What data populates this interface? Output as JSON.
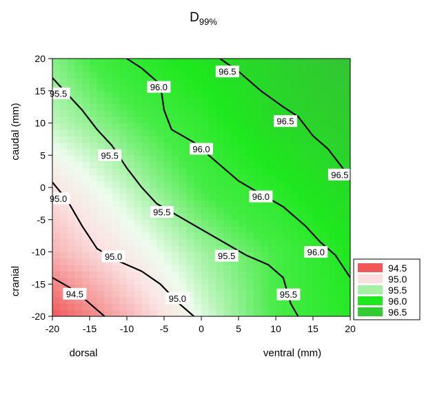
{
  "chart_data": {
    "type": "contour",
    "title_main": "D",
    "title_sub": "99%",
    "xlim": [
      -20,
      20
    ],
    "ylim": [
      -20,
      20
    ],
    "x_ticks": [
      -20,
      -15,
      -10,
      -5,
      0,
      5,
      10,
      15,
      20
    ],
    "y_ticks": [
      -20,
      -15,
      -10,
      -5,
      0,
      5,
      10,
      15,
      20
    ],
    "xlabel_left": "dorsal",
    "xlabel_right": "ventral (mm)",
    "ylabel_top": "caudal (mm)",
    "ylabel_bottom": "cranial",
    "grid": false,
    "legend_position": "right",
    "legend": [
      {
        "label": "94.5",
        "color": "#f25757"
      },
      {
        "label": "95.0",
        "color": "#fbdfdf"
      },
      {
        "label": "95.5",
        "color": "#a3f2a3"
      },
      {
        "label": "96.0",
        "color": "#1ee81e"
      },
      {
        "label": "96.5",
        "color": "#2fcd2f"
      }
    ],
    "grid_x": [
      -20,
      -10,
      0,
      10,
      20
    ],
    "grid_y": [
      -20,
      -10,
      0,
      10,
      20
    ],
    "z": [
      [
        94.3,
        94.9,
        95.5,
        96.0,
        96.3
      ],
      [
        94.9,
        95.3,
        95.7,
        96.0,
        96.4
      ],
      [
        95.2,
        95.6,
        96.0,
        96.3,
        96.7
      ],
      [
        95.6,
        95.9,
        96.2,
        96.7,
        97.0
      ],
      [
        95.8,
        96.2,
        96.5,
        96.9,
        97.2
      ]
    ],
    "contour_lines": [
      {
        "level": "94.5",
        "points": [
          [
            -20,
            -14
          ],
          [
            -17,
            -16
          ],
          [
            -15,
            -18
          ],
          [
            -13,
            -20
          ]
        ]
      },
      {
        "level": "95.0",
        "points": [
          [
            -20,
            0.8
          ],
          [
            -18,
            -2
          ],
          [
            -16,
            -6
          ],
          [
            -14,
            -9.5
          ],
          [
            -11,
            -11.5
          ],
          [
            -8,
            -13
          ],
          [
            -5.5,
            -15
          ],
          [
            -3,
            -18
          ],
          [
            -1,
            -20
          ]
        ]
      },
      {
        "level": "95.5",
        "points": [
          [
            -20,
            17
          ],
          [
            -18,
            14.5
          ],
          [
            -16,
            12
          ],
          [
            -14,
            9
          ],
          [
            -12,
            6.5
          ],
          [
            -10,
            3
          ],
          [
            -8,
            0
          ],
          [
            -6,
            -2.5
          ],
          [
            -3,
            -4.5
          ],
          [
            0,
            -6.5
          ],
          [
            3,
            -8.5
          ],
          [
            6,
            -10.5
          ],
          [
            9,
            -12
          ],
          [
            11,
            -14
          ],
          [
            12,
            -18
          ],
          [
            13,
            -20
          ]
        ]
      },
      {
        "level": "96.0",
        "points": [
          [
            -10,
            20
          ],
          [
            -8,
            18.5
          ],
          [
            -5.5,
            16
          ],
          [
            -5,
            12
          ],
          [
            -4,
            9
          ],
          [
            -1,
            7
          ],
          [
            1,
            5
          ],
          [
            3,
            3
          ],
          [
            5,
            1
          ],
          [
            8,
            -1
          ],
          [
            11,
            -3
          ],
          [
            14,
            -6
          ],
          [
            16,
            -8.5
          ],
          [
            18,
            -10.5
          ],
          [
            20,
            -14
          ]
        ]
      },
      {
        "level": "96.5",
        "points": [
          [
            2.5,
            20
          ],
          [
            5,
            18
          ],
          [
            8,
            15
          ],
          [
            11,
            12.5
          ],
          [
            13,
            11
          ],
          [
            15,
            8
          ],
          [
            17,
            6
          ],
          [
            19,
            3
          ],
          [
            20,
            1
          ]
        ]
      }
    ],
    "contour_label_points": [
      {
        "level": "94.5",
        "x": -17,
        "y": -16.5
      },
      {
        "level": "95.0",
        "x": -19.2,
        "y": -1.7
      },
      {
        "level": "95.0",
        "x": -11.8,
        "y": -10.7
      },
      {
        "level": "95.0",
        "x": -3.2,
        "y": -17.2
      },
      {
        "level": "95.5",
        "x": -19.2,
        "y": 14.6
      },
      {
        "level": "95.5",
        "x": -12.3,
        "y": 5.0
      },
      {
        "level": "95.5",
        "x": -5.3,
        "y": -3.8
      },
      {
        "level": "95.5",
        "x": 3.4,
        "y": -10.6
      },
      {
        "level": "95.5",
        "x": 11.7,
        "y": -16.6
      },
      {
        "level": "96.0",
        "x": -5.7,
        "y": 15.6
      },
      {
        "level": "96.0",
        "x": 0.0,
        "y": 6.0
      },
      {
        "level": "96.0",
        "x": 8.0,
        "y": -1.4
      },
      {
        "level": "96.0",
        "x": 15.4,
        "y": -10.0
      },
      {
        "level": "96.5",
        "x": 3.5,
        "y": 18.0
      },
      {
        "level": "96.5",
        "x": 11.3,
        "y": 10.3
      },
      {
        "level": "96.5",
        "x": 18.6,
        "y": 2.0
      }
    ]
  }
}
